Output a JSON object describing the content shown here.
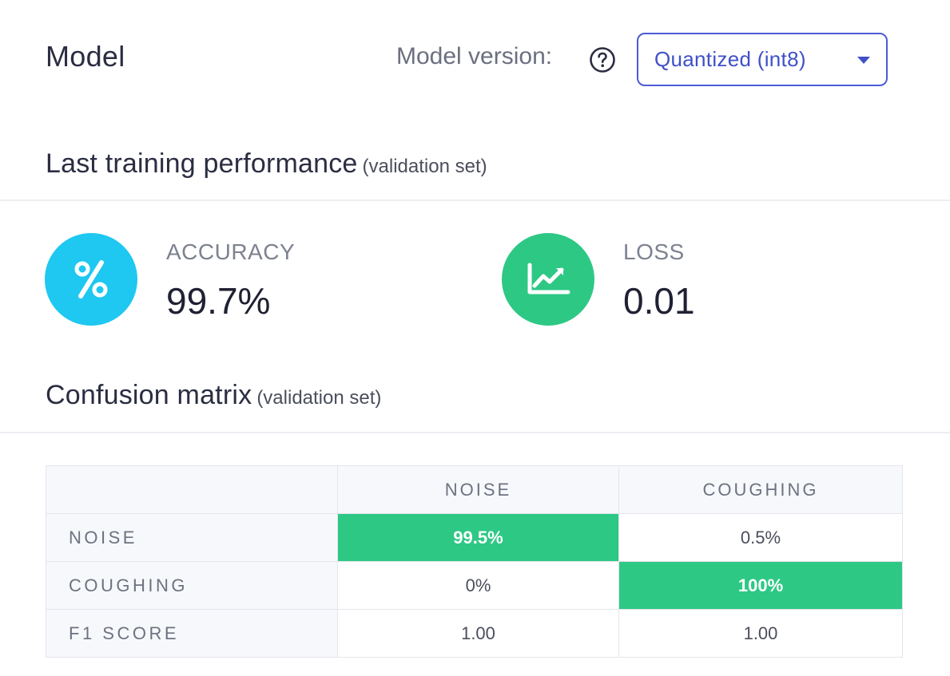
{
  "header": {
    "title": "Model",
    "version_label": "Model version:",
    "help_icon": "question-circle-icon",
    "version_select": {
      "selected": "Quantized (int8)"
    }
  },
  "performance": {
    "heading": "Last training performance",
    "heading_sub": "(validation set)",
    "accuracy": {
      "label": "ACCURACY",
      "value": "99.7%",
      "icon": "percent-icon",
      "color": "#1ec8f0"
    },
    "loss": {
      "label": "LOSS",
      "value": "0.01",
      "icon": "chart-line-icon",
      "color": "#2ec885"
    }
  },
  "confusion": {
    "heading": "Confusion matrix",
    "heading_sub": "(validation set)",
    "columns": [
      "NOISE",
      "COUGHING"
    ],
    "rows": [
      {
        "label": "NOISE",
        "cells": [
          "99.5%",
          "0.5%"
        ]
      },
      {
        "label": "COUGHING",
        "cells": [
          "0%",
          "100%"
        ]
      },
      {
        "label": "F1 SCORE",
        "cells": [
          "1.00",
          "1.00"
        ]
      }
    ],
    "highlight_color": "#2ec885"
  }
}
